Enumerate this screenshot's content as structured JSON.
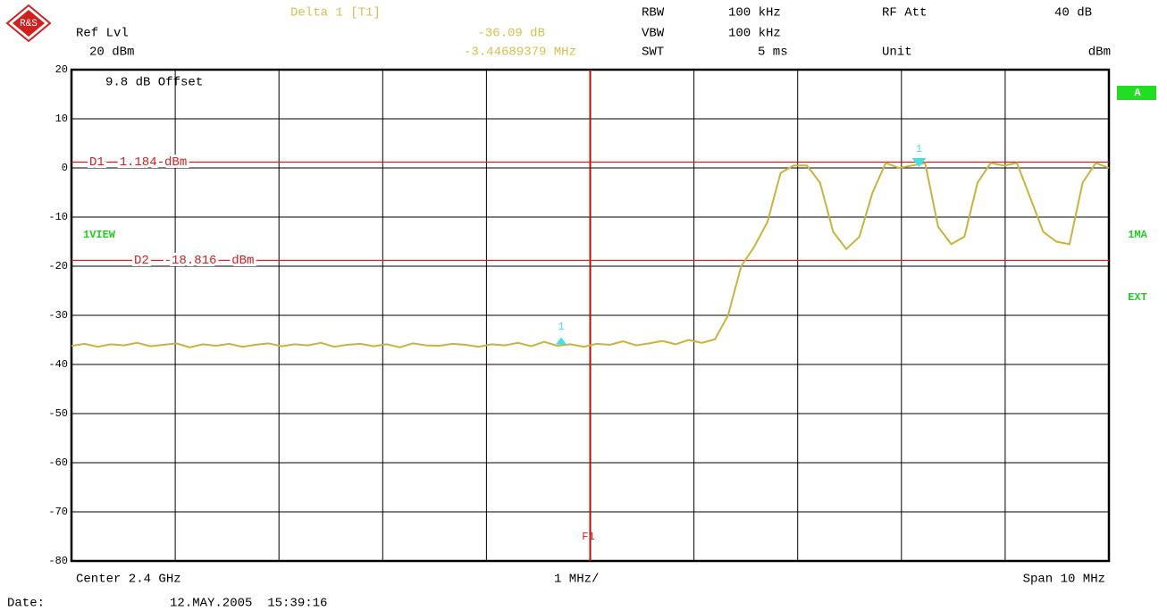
{
  "header": {
    "ref_lvl": "Ref Lvl",
    "ref_value": "20 dBm",
    "marker_title": "Delta 1 [T1]",
    "marker_level": "-36.09 dB",
    "marker_freq": "-3.44689379 MHz",
    "rbw": "RBW",
    "rbw_value": "100 kHz",
    "vbw": "VBW",
    "vbw_value": "100 kHz",
    "swt": "SWT",
    "swt_value": "5 ms",
    "rf_att": "RF Att",
    "rf_att_value": "40 dB",
    "unit": "Unit",
    "unit_value": "dBm"
  },
  "chart_data": {
    "type": "line",
    "color": "#c8b43c",
    "grid": true,
    "ylim": [
      -80,
      20
    ],
    "yticks": [
      20,
      10,
      0,
      -10,
      -20,
      -30,
      -40,
      -50,
      -60,
      -70,
      -80
    ],
    "xlim": [
      2395,
      2405
    ],
    "values": [
      -36.2,
      -35.8,
      -36.4,
      -35.9,
      -36.1,
      -35.6,
      -36.3,
      -36.0,
      -35.7,
      -36.5,
      -35.9,
      -36.2,
      -35.8,
      -36.4,
      -36.0,
      -35.7,
      -36.3,
      -35.9,
      -36.1,
      -35.6,
      -36.4,
      -36.0,
      -35.8,
      -36.3,
      -35.9,
      -36.5,
      -35.7,
      -36.1,
      -36.2,
      -35.8,
      -36.0,
      -36.4,
      -35.9,
      -36.1,
      -35.6,
      -36.3,
      -35.4,
      -36.2,
      -35.9,
      -36.4,
      -35.8,
      -36.0,
      -35.3,
      -36.1,
      -35.7,
      -35.2,
      -35.9,
      -35.0,
      -35.6,
      -34.9,
      -30,
      -20,
      -16,
      -11,
      -1,
      0.5,
      0.5,
      -3,
      -13,
      -16.5,
      -14,
      -5,
      1,
      0,
      0.5,
      1,
      -12,
      -15.5,
      -14,
      -3,
      1,
      0.5,
      1,
      -6,
      -13,
      -15,
      -15.5,
      -3,
      1,
      0
    ],
    "display_lines": [
      {
        "label": "D1  1.184 dBm",
        "value": 1.184
      },
      {
        "label": "D2  -18.816  dBm",
        "value": -18.816
      }
    ],
    "markers": [
      {
        "label": "1",
        "x": 2399.72,
        "y": -35.2
      },
      {
        "label": "1",
        "x": 2403.17,
        "y": 0.9
      }
    ],
    "frequency_line": {
      "label": "F1",
      "x": 2400
    },
    "offset_label": "9.8 dB Offset",
    "view_label": "1VIEW",
    "side_labels": [
      "A",
      "1MA",
      "EXT"
    ],
    "x_labels": {
      "center": "Center 2.4 GHz",
      "per_div": "1 MHz/",
      "span": "Span 10 MHz"
    }
  },
  "footer": {
    "date_label": "Date:",
    "date": "12.MAY.2005  15:39:16"
  }
}
